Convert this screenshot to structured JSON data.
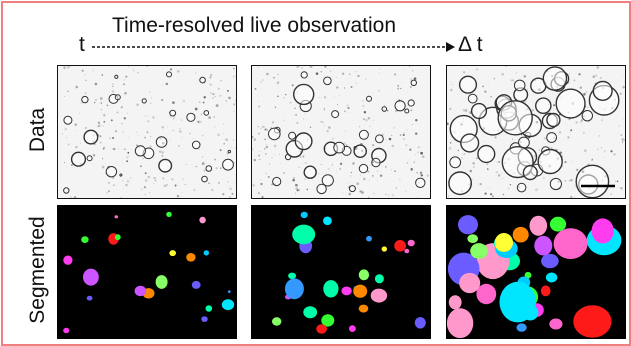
{
  "title": "Time-resolved live observation",
  "time_start": "t",
  "time_end": "Δ t",
  "rows": {
    "data": "Data",
    "segmented": "Segmented"
  },
  "colors": {
    "frame": "#f08080",
    "segment_palette": [
      "#ff3cf0",
      "#00e6ff",
      "#33ff33",
      "#ff1a1a",
      "#6a5cff",
      "#ffff33",
      "#ff99cc",
      "#00ffaa",
      "#3399ff",
      "#cc55ff",
      "#ff8800",
      "#88ff66",
      "#ff66cc",
      "#00ccff"
    ]
  }
}
